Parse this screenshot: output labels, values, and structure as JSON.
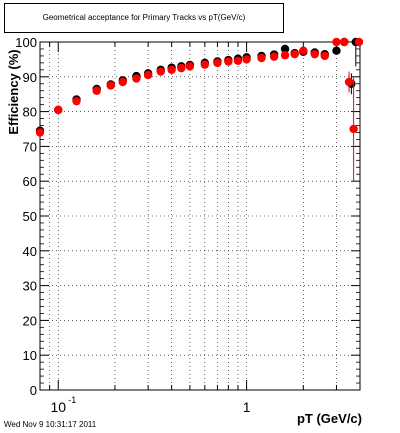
{
  "title": "Geometrical acceptance for Primary Tracks vs pT(GeV/c)",
  "timestamp": "Wed Nov  9 10:31:17 2011",
  "colors": {
    "series_black": "#000000",
    "series_red": "#ff0000",
    "grid": "#000000"
  },
  "chart_data": {
    "type": "scatter",
    "xlabel": "pT (GeV/c)",
    "ylabel": "Efficiency (%)",
    "xscale": "log",
    "xlim": [
      0.08,
      4.0
    ],
    "ylim": [
      0,
      100
    ],
    "grid": true,
    "x_ticks": [
      {
        "value": 0.1,
        "base": "10",
        "exp": "-1"
      },
      {
        "value": 1,
        "base": "1",
        "exp": ""
      }
    ],
    "y_ticks": [
      0,
      10,
      20,
      30,
      40,
      50,
      60,
      70,
      80,
      90,
      100
    ],
    "series": [
      {
        "color": "#000000",
        "points": [
          {
            "x": 0.08,
            "y": 74.5
          },
          {
            "x": 0.1,
            "y": 80.5
          },
          {
            "x": 0.125,
            "y": 83.5
          },
          {
            "x": 0.16,
            "y": 86.5
          },
          {
            "x": 0.19,
            "y": 87.8
          },
          {
            "x": 0.22,
            "y": 89.0
          },
          {
            "x": 0.26,
            "y": 90.2
          },
          {
            "x": 0.3,
            "y": 91.0
          },
          {
            "x": 0.35,
            "y": 92.0
          },
          {
            "x": 0.4,
            "y": 92.6
          },
          {
            "x": 0.45,
            "y": 93.0
          },
          {
            "x": 0.5,
            "y": 93.4
          },
          {
            "x": 0.6,
            "y": 94.0
          },
          {
            "x": 0.7,
            "y": 94.4
          },
          {
            "x": 0.8,
            "y": 94.8
          },
          {
            "x": 0.9,
            "y": 95.2
          },
          {
            "x": 1.0,
            "y": 95.6
          },
          {
            "x": 1.2,
            "y": 96.0
          },
          {
            "x": 1.4,
            "y": 96.4
          },
          {
            "x": 1.6,
            "y": 98.0
          },
          {
            "x": 1.8,
            "y": 96.8
          },
          {
            "x": 2.0,
            "y": 97.2
          },
          {
            "x": 2.3,
            "y": 97.0
          },
          {
            "x": 2.6,
            "y": 96.5
          },
          {
            "x": 3.0,
            "y": 97.5
          },
          {
            "x": 3.3,
            "y": 100.0
          },
          {
            "x": 3.6,
            "y": 88.0,
            "err": 3
          },
          {
            "x": 3.8,
            "y": 100.0,
            "err": 7
          }
        ]
      },
      {
        "color": "#ff0000",
        "points": [
          {
            "x": 0.08,
            "y": 74.0
          },
          {
            "x": 0.1,
            "y": 80.5
          },
          {
            "x": 0.125,
            "y": 83.0
          },
          {
            "x": 0.16,
            "y": 86.0
          },
          {
            "x": 0.19,
            "y": 87.5
          },
          {
            "x": 0.22,
            "y": 88.5
          },
          {
            "x": 0.26,
            "y": 89.5
          },
          {
            "x": 0.3,
            "y": 90.5
          },
          {
            "x": 0.35,
            "y": 91.5
          },
          {
            "x": 0.4,
            "y": 92.0
          },
          {
            "x": 0.45,
            "y": 92.5
          },
          {
            "x": 0.5,
            "y": 93.0
          },
          {
            "x": 0.6,
            "y": 93.5
          },
          {
            "x": 0.7,
            "y": 94.0
          },
          {
            "x": 0.8,
            "y": 94.4
          },
          {
            "x": 0.9,
            "y": 94.6
          },
          {
            "x": 1.0,
            "y": 95.0
          },
          {
            "x": 1.2,
            "y": 95.4
          },
          {
            "x": 1.4,
            "y": 95.8
          },
          {
            "x": 1.6,
            "y": 96.2
          },
          {
            "x": 1.8,
            "y": 96.5
          },
          {
            "x": 2.0,
            "y": 97.5
          },
          {
            "x": 2.3,
            "y": 96.5
          },
          {
            "x": 2.6,
            "y": 96.0
          },
          {
            "x": 3.0,
            "y": 100.0
          },
          {
            "x": 3.3,
            "y": 100.0
          },
          {
            "x": 3.5,
            "y": 88.5,
            "err": 3
          },
          {
            "x": 3.7,
            "y": 75.0,
            "err": 15
          },
          {
            "x": 3.95,
            "y": 100.0
          }
        ]
      }
    ]
  }
}
